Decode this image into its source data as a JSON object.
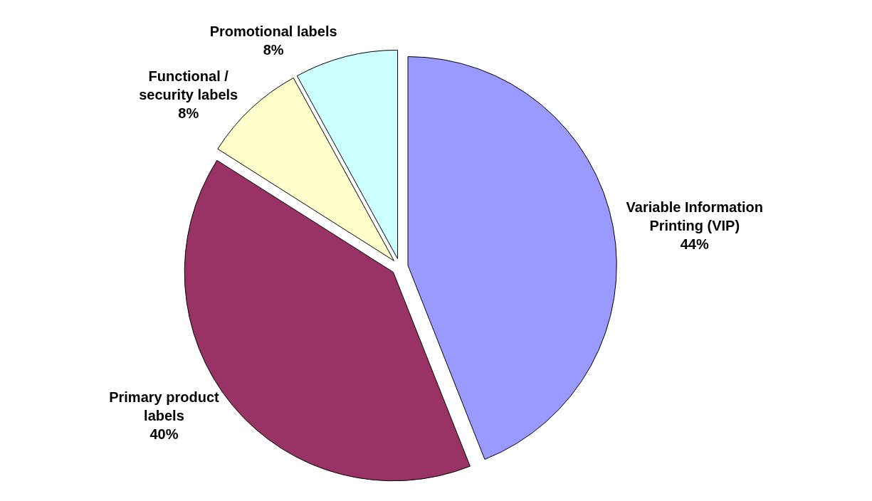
{
  "chart_data": {
    "type": "pie",
    "categories": [
      "Variable Information Printing (VIP)",
      "Primary product labels",
      "Functional / security labels",
      "Promotional labels"
    ],
    "values": [
      44,
      40,
      8,
      8
    ],
    "value_labels": [
      "44%",
      "40%",
      "8%",
      "8%"
    ],
    "colors": [
      "#9999ff",
      "#993366",
      "#ffffcc",
      "#ccffff"
    ],
    "legend": false
  }
}
